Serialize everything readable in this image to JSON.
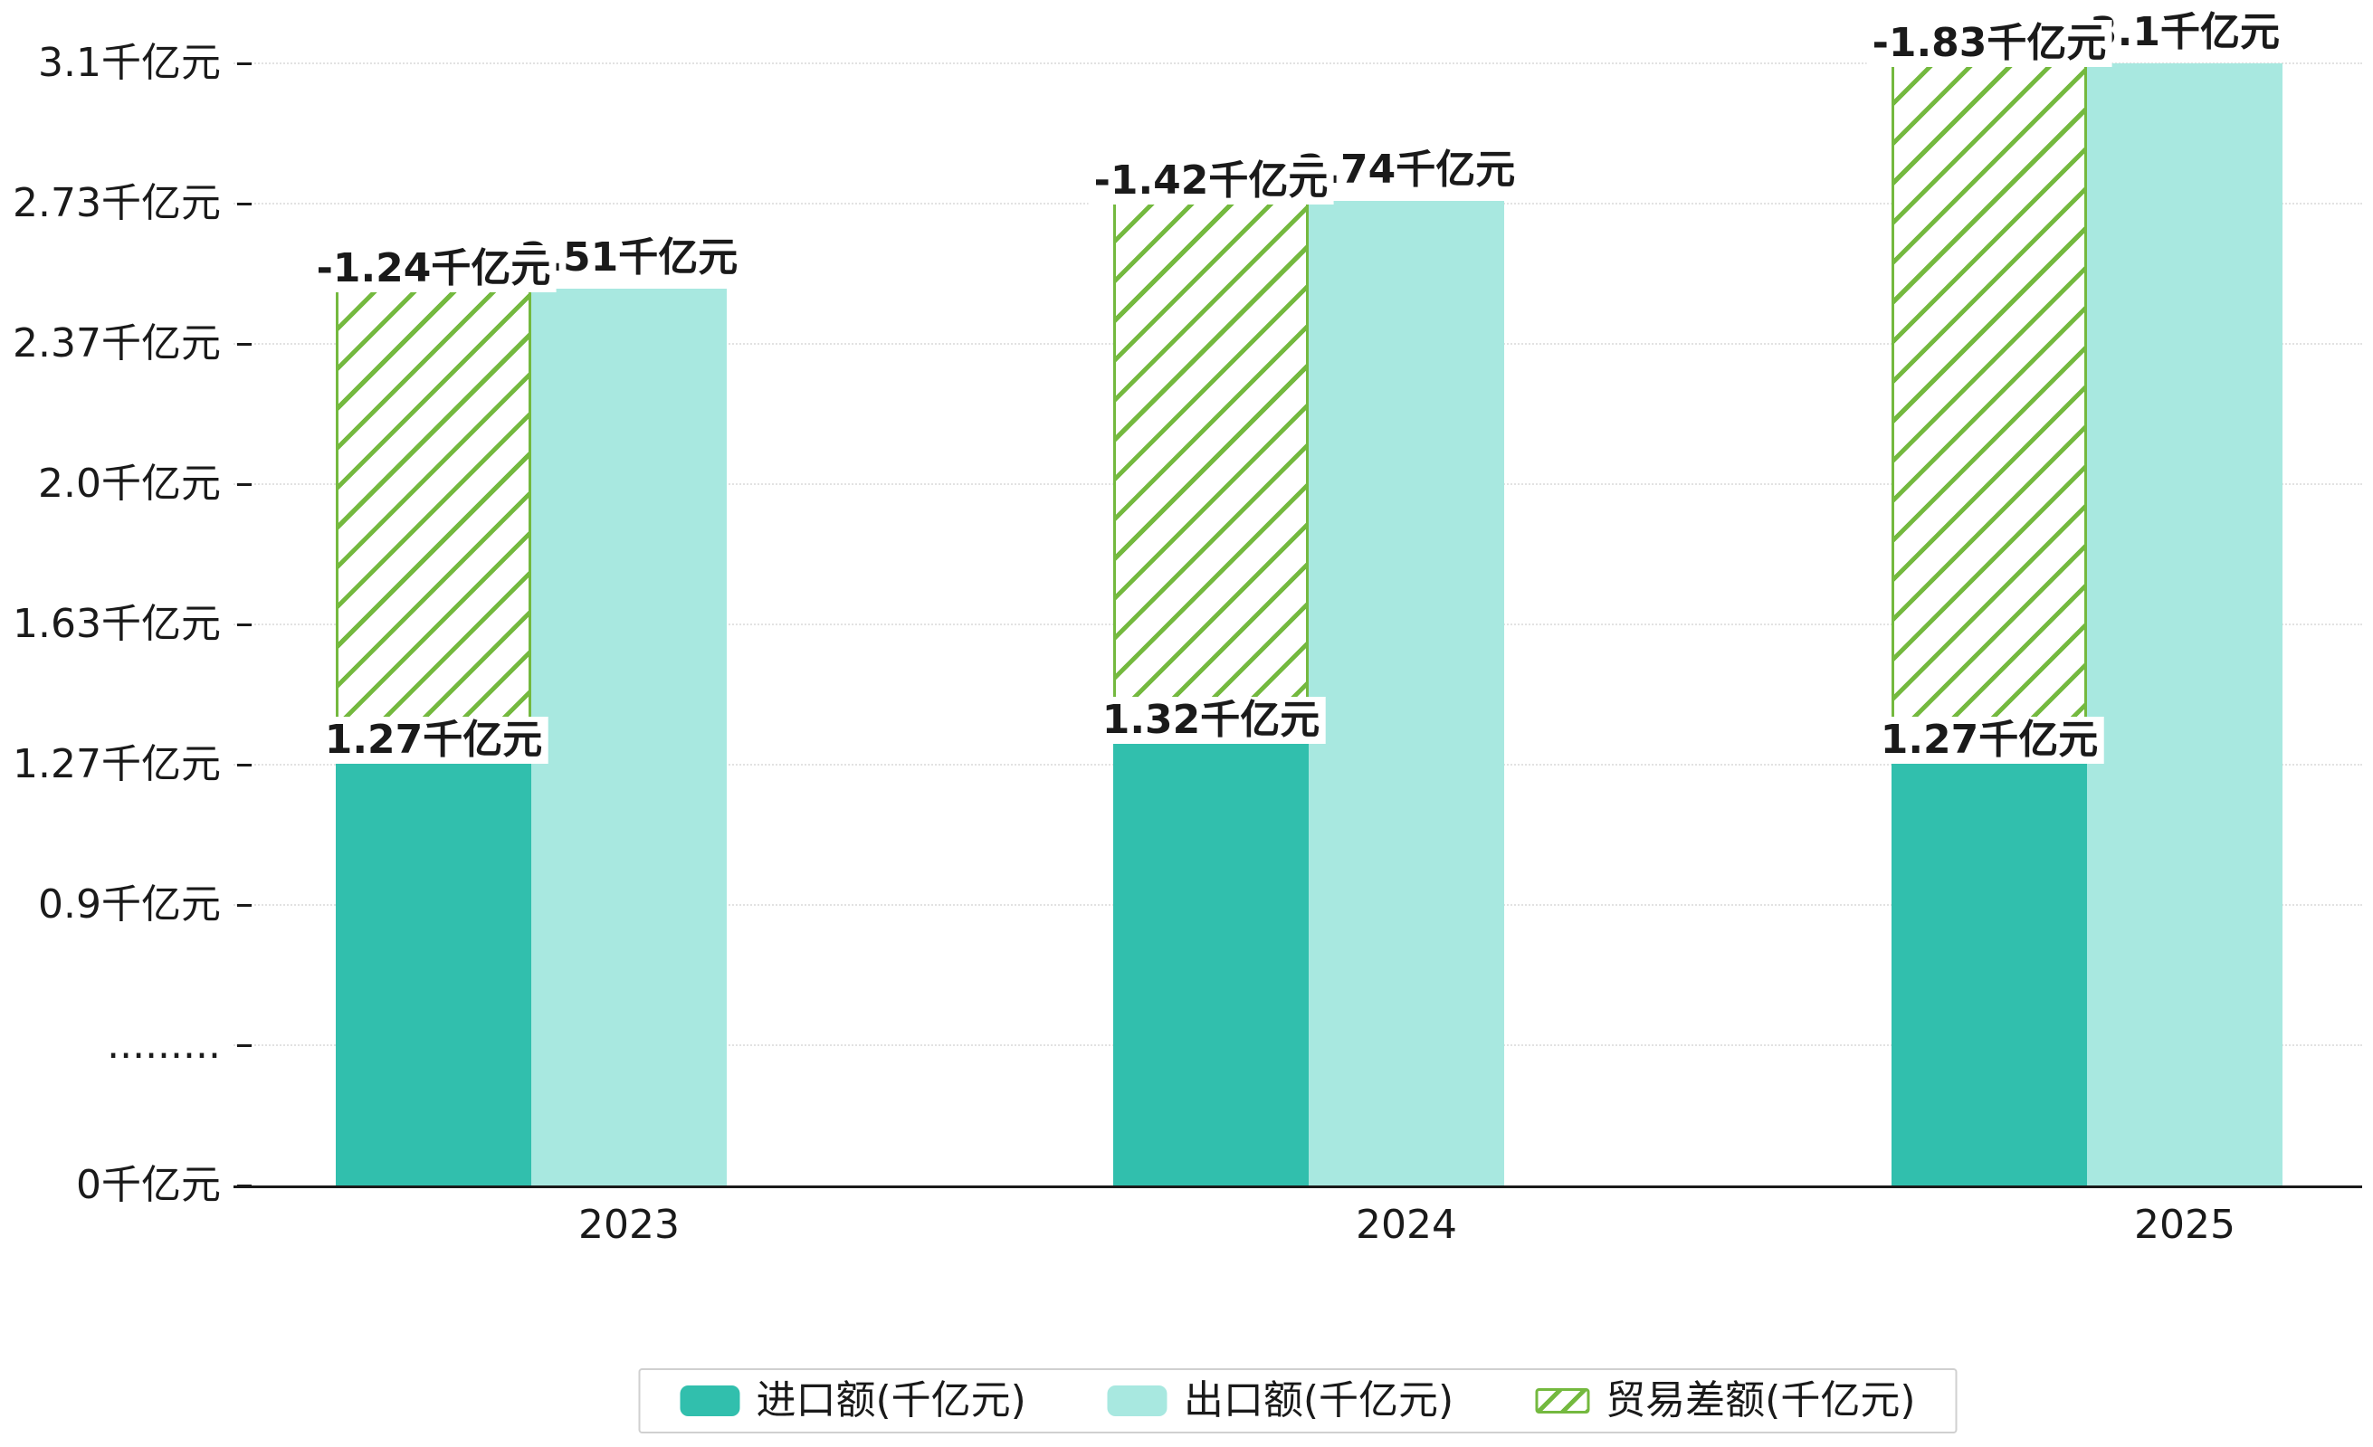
{
  "chart_data": {
    "type": "bar",
    "title": "",
    "categories": [
      "2023",
      "2024",
      "2025"
    ],
    "series": [
      {
        "name": "进口额(千亿元)",
        "color": "#31BFAD",
        "values": [
          1.27,
          1.32,
          1.27
        ],
        "data_labels": [
          "1.27千亿元",
          "1.32千亿元",
          "1.27千亿元"
        ]
      },
      {
        "name": "出口额(千亿元)",
        "color": "#A8E8E0",
        "values": [
          2.51,
          2.74,
          3.1
        ],
        "data_labels": [
          "2.51千亿元",
          "2.74千亿元",
          "3.1千亿元"
        ]
      },
      {
        "name": "贸易差额(千亿元)",
        "color": "#74B93F",
        "values": [
          -1.24,
          -1.42,
          -1.83
        ],
        "data_labels": [
          "-1.24千亿元",
          "-1.42千亿元",
          "-1.83千亿元"
        ],
        "style": "hatched",
        "stacked_on_top_of": "进口额(千亿元)"
      }
    ],
    "yticks": [
      {
        "value": 0,
        "label": "0千亿元"
      },
      {
        "value": null,
        "label": "........."
      },
      {
        "value": 0.9,
        "label": "0.9千亿元"
      },
      {
        "value": 1.27,
        "label": "1.27千亿元"
      },
      {
        "value": 1.63,
        "label": "1.63千亿元"
      },
      {
        "value": 2.0,
        "label": "2.0千亿元"
      },
      {
        "value": 2.37,
        "label": "2.37千亿元"
      },
      {
        "value": 2.73,
        "label": "2.73千亿元"
      },
      {
        "value": 3.1,
        "label": "3.1千亿元"
      }
    ],
    "axis_break_between": [
      0,
      0.9
    ],
    "grid": "dotted-horizontal",
    "legend_position": "bottom-center",
    "background": "#ffffff",
    "text_color": "#1a1a1a"
  }
}
